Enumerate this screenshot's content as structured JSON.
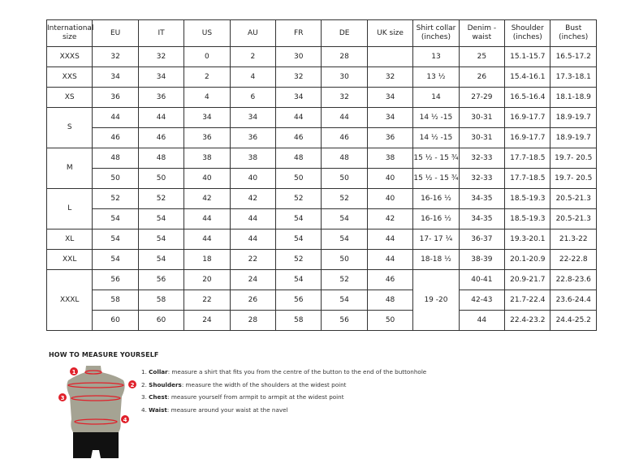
{
  "headers": [
    "International size",
    "EU",
    "IT",
    "US",
    "AU",
    "FR",
    "DE",
    "UK size",
    "Shirt collar (inches)",
    "Denim - waist",
    "Shoulder (inches)",
    "Bust (inches)"
  ],
  "groups": [
    {
      "size": "XXXS",
      "rows": [
        [
          "32",
          "32",
          "0",
          "2",
          "30",
          "28",
          "",
          "13",
          "25",
          "15.1-15.7",
          "16.5-17.2"
        ]
      ]
    },
    {
      "size": "XXS",
      "rows": [
        [
          "34",
          "34",
          "2",
          "4",
          "32",
          "30",
          "32",
          "13 ½",
          "26",
          "15.4-16.1",
          "17.3-18.1"
        ]
      ]
    },
    {
      "size": "XS",
      "rows": [
        [
          "36",
          "36",
          "4",
          "6",
          "34",
          "32",
          "34",
          "14",
          "27-29",
          "16.5-16.4",
          "18.1-18.9"
        ]
      ]
    },
    {
      "size": "S",
      "rows": [
        [
          "44",
          "44",
          "34",
          "34",
          "44",
          "44",
          "34",
          "14 ½ -15",
          "30-31",
          "16.9-17.7",
          "18.9-19.7"
        ],
        [
          "46",
          "46",
          "36",
          "36",
          "46",
          "46",
          "36",
          "14 ½ -15",
          "30-31",
          "16.9-17.7",
          "18.9-19.7"
        ]
      ]
    },
    {
      "size": "M",
      "rows": [
        [
          "48",
          "48",
          "38",
          "38",
          "48",
          "48",
          "38",
          "15 ½ - 15 ¾",
          "32-33",
          "17.7-18.5",
          "19.7- 20.5"
        ],
        [
          "50",
          "50",
          "40",
          "40",
          "50",
          "50",
          "40",
          "15 ½ - 15 ¾",
          "32-33",
          "17.7-18.5",
          "19.7- 20.5"
        ]
      ]
    },
    {
      "size": "L",
      "rows": [
        [
          "52",
          "52",
          "42",
          "42",
          "52",
          "52",
          "40",
          "16-16 ½",
          "34-35",
          "18.5-19.3",
          "20.5-21.3"
        ],
        [
          "54",
          "54",
          "44",
          "44",
          "54",
          "54",
          "42",
          "16-16 ½",
          "34-35",
          "18.5-19.3",
          "20.5-21.3"
        ]
      ]
    },
    {
      "size": "XL",
      "rows": [
        [
          "54",
          "54",
          "44",
          "44",
          "54",
          "54",
          "44",
          "17- 17 ¼",
          "36-37",
          "19.3-20.1",
          "21.3-22"
        ]
      ]
    },
    {
      "size": "XXL",
      "rows": [
        [
          "54",
          "54",
          "18",
          "22",
          "52",
          "50",
          "44",
          "18-18 ½",
          "38-39",
          "20.1-20.9",
          "22-22.8"
        ]
      ]
    },
    {
      "size": "XXXL",
      "rows": [
        [
          "56",
          "56",
          "20",
          "24",
          "54",
          "52",
          "46",
          "19 -20",
          "40-41",
          "20.9-21.7",
          "22.8-23.6"
        ],
        [
          "58",
          "58",
          "22",
          "26",
          "56",
          "54",
          "48",
          null,
          "42-43",
          "21.7-22.4",
          "23.6-24.4"
        ],
        [
          "60",
          "60",
          "24",
          "28",
          "58",
          "56",
          "50",
          null,
          "44",
          "22.4-23.2",
          "24.4-25.2"
        ]
      ]
    }
  ],
  "guide": {
    "title": "HOW TO MEASURE YOURSELF",
    "steps": [
      {
        "num": "1.",
        "term": "Collar",
        "text": ": measure a shirt that fits you from the centre of the button to the end of the buttonhole"
      },
      {
        "num": "2.",
        "term": "Shoulders",
        "text": ": measure the width of the shoulders at the widest point"
      },
      {
        "num": "3.",
        "term": "Chest",
        "text": ": measure yourself from armpit to armpit at the widest point"
      },
      {
        "num": "4.",
        "term": "Waist",
        "text": ": measure around your waist at the navel"
      }
    ],
    "markers": [
      "1",
      "2",
      "3",
      "4"
    ],
    "colors": {
      "body": "#a5a393",
      "marker": "#e0202a",
      "pants": "#111111"
    }
  }
}
